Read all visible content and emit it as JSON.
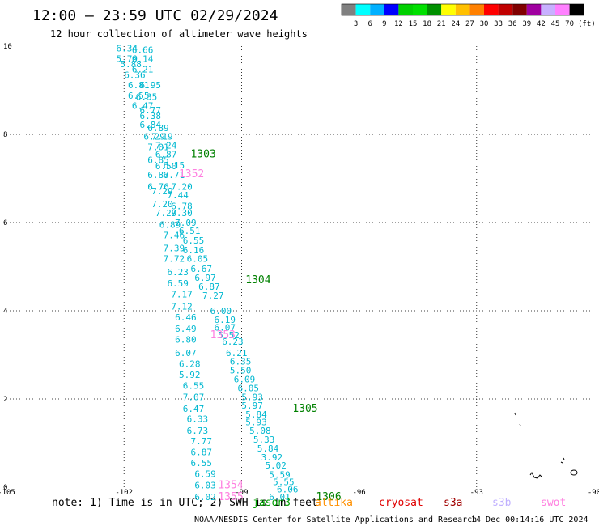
{
  "header": {
    "title": "12:00 — 23:59 UTC 02/29/2024",
    "subtitle": "12 hour collection of altimeter wave heights"
  },
  "scale": {
    "labels": [
      "3",
      "6",
      "9",
      "12",
      "15",
      "18",
      "21",
      "24",
      "27",
      "30",
      "33",
      "36",
      "39",
      "42",
      "45",
      "70"
    ],
    "unit": "(ft)",
    "colors": [
      "#808080",
      "#00ffff",
      "#00b0ff",
      "#0000ff",
      "#00d000",
      "#00e000",
      "#009000",
      "#ffff00",
      "#ffc000",
      "#ff8000",
      "#ff0000",
      "#c00000",
      "#800000",
      "#a000a0",
      "#c8b0ff",
      "#ff80ff",
      "#000000"
    ]
  },
  "footer": {
    "note": "note:  1) Time is in UTC; 2) SWH is in feet",
    "missions": [
      {
        "label": "jason3",
        "color": "#00a000"
      },
      {
        "label": "altika",
        "color": "#ff9000"
      },
      {
        "label": "cryosat",
        "color": "#e00000"
      },
      {
        "label": "s3a",
        "color": "#a00000"
      },
      {
        "label": "s3b",
        "color": "#c0b0ff"
      },
      {
        "label": "swot",
        "color": "#ff80e0"
      }
    ],
    "credit": "NOAA/NESDIS Center for Satellite Applications and Research",
    "timestamp": "14 Dec 00:14:16 UTC 2024"
  },
  "chart_data": {
    "type": "scatter",
    "x_ticks": [
      "-105",
      "-102",
      "-99",
      "-96",
      "-93",
      "-90"
    ],
    "y_ticks": [
      "0",
      "2",
      "4",
      "6",
      "8",
      "10"
    ],
    "xlim": [
      -105,
      -90
    ],
    "ylim": [
      0,
      10
    ],
    "grid": true,
    "points": [
      {
        "x": -102.2,
        "y": 9.95,
        "v": "6.34",
        "c": "#00b8d0"
      },
      {
        "x": -101.8,
        "y": 9.92,
        "v": "6.66",
        "c": "#00b8d0"
      },
      {
        "x": -102.2,
        "y": 9.72,
        "v": "5.79",
        "c": "#00b8d0"
      },
      {
        "x": -101.8,
        "y": 9.72,
        "v": "6.14",
        "c": "#00b8d0"
      },
      {
        "x": -102.1,
        "y": 9.6,
        "v": "5.88",
        "c": "#00b8d0"
      },
      {
        "x": -101.8,
        "y": 9.48,
        "v": "6.21",
        "c": "#00b8d0"
      },
      {
        "x": -102.0,
        "y": 9.35,
        "v": "6.36",
        "c": "#00b8d0"
      },
      {
        "x": -101.9,
        "y": 9.12,
        "v": "6.81",
        "c": "#00b8d0"
      },
      {
        "x": -101.6,
        "y": 9.12,
        "v": "6.95",
        "c": "#00b8d0"
      },
      {
        "x": -101.9,
        "y": 8.88,
        "v": "6.55",
        "c": "#00b8d0"
      },
      {
        "x": -101.7,
        "y": 8.85,
        "v": "6.35",
        "c": "#00b8d0"
      },
      {
        "x": -101.8,
        "y": 8.65,
        "v": "6.47",
        "c": "#00b8d0"
      },
      {
        "x": -101.6,
        "y": 8.55,
        "v": "6.77",
        "c": "#00b8d0"
      },
      {
        "x": -101.6,
        "y": 8.42,
        "v": "6.38",
        "c": "#00b8d0"
      },
      {
        "x": -101.6,
        "y": 8.22,
        "v": "6.84",
        "c": "#00b8d0"
      },
      {
        "x": -101.4,
        "y": 8.15,
        "v": "6.89",
        "c": "#00b8d0"
      },
      {
        "x": -101.5,
        "y": 7.95,
        "v": "6.29",
        "c": "#00b8d0"
      },
      {
        "x": -101.3,
        "y": 7.95,
        "v": "7.19",
        "c": "#00b8d0"
      },
      {
        "x": -101.4,
        "y": 7.72,
        "v": "7.01",
        "c": "#00b8d0"
      },
      {
        "x": -101.2,
        "y": 7.75,
        "v": "7.24",
        "c": "#00b8d0"
      },
      {
        "x": -101.2,
        "y": 7.55,
        "v": "6.87",
        "c": "#00b8d0"
      },
      {
        "x": -101.4,
        "y": 7.42,
        "v": "6.85",
        "c": "#00b8d0"
      },
      {
        "x": -101.0,
        "y": 7.3,
        "v": "6.15",
        "c": "#00b8d0"
      },
      {
        "x": -101.2,
        "y": 7.28,
        "v": "6.50",
        "c": "#00b8d0"
      },
      {
        "x": -101.4,
        "y": 7.08,
        "v": "6.87",
        "c": "#00b8d0"
      },
      {
        "x": -101.0,
        "y": 7.08,
        "v": "6.71",
        "c": "#00b8d0"
      },
      {
        "x": -101.4,
        "y": 6.82,
        "v": "6.76",
        "c": "#00b8d0"
      },
      {
        "x": -100.8,
        "y": 6.82,
        "v": "7.20",
        "c": "#00b8d0"
      },
      {
        "x": -101.3,
        "y": 6.72,
        "v": "7.29",
        "c": "#00b8d0"
      },
      {
        "x": -100.9,
        "y": 6.62,
        "v": "7.44",
        "c": "#00b8d0"
      },
      {
        "x": -101.3,
        "y": 6.42,
        "v": "7.20",
        "c": "#00b8d0"
      },
      {
        "x": -100.8,
        "y": 6.38,
        "v": "6.78",
        "c": "#00b8d0"
      },
      {
        "x": -101.2,
        "y": 6.22,
        "v": "7.29",
        "c": "#00b8d0"
      },
      {
        "x": -100.8,
        "y": 6.22,
        "v": "7.30",
        "c": "#00b8d0"
      },
      {
        "x": -101.1,
        "y": 5.95,
        "v": "6.89",
        "c": "#00b8d0"
      },
      {
        "x": -100.7,
        "y": 6.0,
        "v": "7.09",
        "c": "#00b8d0"
      },
      {
        "x": -100.6,
        "y": 5.82,
        "v": "6.51",
        "c": "#00b8d0"
      },
      {
        "x": -101.0,
        "y": 5.72,
        "v": "7.46",
        "c": "#00b8d0"
      },
      {
        "x": -100.5,
        "y": 5.6,
        "v": "6.55",
        "c": "#00b8d0"
      },
      {
        "x": -101.0,
        "y": 5.42,
        "v": "7.39",
        "c": "#00b8d0"
      },
      {
        "x": -100.5,
        "y": 5.38,
        "v": "6.16",
        "c": "#00b8d0"
      },
      {
        "x": -101.0,
        "y": 5.18,
        "v": "7.72",
        "c": "#00b8d0"
      },
      {
        "x": -100.4,
        "y": 5.18,
        "v": "6.05",
        "c": "#00b8d0"
      },
      {
        "x": -100.3,
        "y": 4.95,
        "v": "6.67",
        "c": "#00b8d0"
      },
      {
        "x": -100.9,
        "y": 4.88,
        "v": "6.23",
        "c": "#00b8d0"
      },
      {
        "x": -100.2,
        "y": 4.75,
        "v": "6.97",
        "c": "#00b8d0"
      },
      {
        "x": -100.9,
        "y": 4.62,
        "v": "6.59",
        "c": "#00b8d0"
      },
      {
        "x": -100.1,
        "y": 4.55,
        "v": "6.87",
        "c": "#00b8d0"
      },
      {
        "x": -100.8,
        "y": 4.38,
        "v": "7.17",
        "c": "#00b8d0"
      },
      {
        "x": -100.0,
        "y": 4.35,
        "v": "7.27",
        "c": "#00b8d0"
      },
      {
        "x": -100.8,
        "y": 4.1,
        "v": "7.12",
        "c": "#00b8d0"
      },
      {
        "x": -99.8,
        "y": 4.0,
        "v": "6.00",
        "c": "#00b8d0"
      },
      {
        "x": -100.7,
        "y": 3.85,
        "v": "6.46",
        "c": "#00b8d0"
      },
      {
        "x": -99.7,
        "y": 3.8,
        "v": "6.19",
        "c": "#00b8d0"
      },
      {
        "x": -100.7,
        "y": 3.6,
        "v": "6.49",
        "c": "#00b8d0"
      },
      {
        "x": -99.7,
        "y": 3.62,
        "v": "6.07",
        "c": "#00b8d0"
      },
      {
        "x": -99.6,
        "y": 3.45,
        "v": "5.52",
        "c": "#00b8d0"
      },
      {
        "x": -100.7,
        "y": 3.35,
        "v": "6.80",
        "c": "#00b8d0"
      },
      {
        "x": -99.5,
        "y": 3.3,
        "v": "6.23",
        "c": "#00b8d0"
      },
      {
        "x": -100.7,
        "y": 3.05,
        "v": "6.07",
        "c": "#00b8d0"
      },
      {
        "x": -99.4,
        "y": 3.05,
        "v": "6.21",
        "c": "#00b8d0"
      },
      {
        "x": -99.3,
        "y": 2.85,
        "v": "6.35",
        "c": "#00b8d0"
      },
      {
        "x": -100.6,
        "y": 2.8,
        "v": "6.28",
        "c": "#00b8d0"
      },
      {
        "x": -99.3,
        "y": 2.65,
        "v": "5.50",
        "c": "#00b8d0"
      },
      {
        "x": -100.6,
        "y": 2.55,
        "v": "5.92",
        "c": "#00b8d0"
      },
      {
        "x": -99.2,
        "y": 2.45,
        "v": "6.09",
        "c": "#00b8d0"
      },
      {
        "x": -100.5,
        "y": 2.3,
        "v": "6.55",
        "c": "#00b8d0"
      },
      {
        "x": -99.1,
        "y": 2.25,
        "v": "6.05",
        "c": "#00b8d0"
      },
      {
        "x": -100.5,
        "y": 2.05,
        "v": "7.07",
        "c": "#00b8d0"
      },
      {
        "x": -99.0,
        "y": 2.05,
        "v": "5.93",
        "c": "#00b8d0"
      },
      {
        "x": -99.0,
        "y": 1.85,
        "v": "5.97",
        "c": "#00b8d0"
      },
      {
        "x": -100.5,
        "y": 1.78,
        "v": "6.47",
        "c": "#00b8d0"
      },
      {
        "x": -98.9,
        "y": 1.65,
        "v": "5.84",
        "c": "#00b8d0"
      },
      {
        "x": -100.4,
        "y": 1.55,
        "v": "6.33",
        "c": "#00b8d0"
      },
      {
        "x": -98.9,
        "y": 1.48,
        "v": "5.93",
        "c": "#00b8d0"
      },
      {
        "x": -100.4,
        "y": 1.28,
        "v": "6.73",
        "c": "#00b8d0"
      },
      {
        "x": -98.8,
        "y": 1.28,
        "v": "5.08",
        "c": "#00b8d0"
      },
      {
        "x": -98.7,
        "y": 1.08,
        "v": "5.33",
        "c": "#00b8d0"
      },
      {
        "x": -100.3,
        "y": 1.05,
        "v": "7.77",
        "c": "#00b8d0"
      },
      {
        "x": -98.6,
        "y": 0.88,
        "v": "5.84",
        "c": "#00b8d0"
      },
      {
        "x": -100.3,
        "y": 0.8,
        "v": "6.87",
        "c": "#00b8d0"
      },
      {
        "x": -98.5,
        "y": 0.68,
        "v": "3.92",
        "c": "#00b8d0"
      },
      {
        "x": -100.3,
        "y": 0.55,
        "v": "6.55",
        "c": "#00b8d0"
      },
      {
        "x": -98.4,
        "y": 0.5,
        "v": "5.02",
        "c": "#00b8d0"
      },
      {
        "x": -100.2,
        "y": 0.3,
        "v": "6.59",
        "c": "#00b8d0"
      },
      {
        "x": -98.3,
        "y": 0.28,
        "v": "5.59",
        "c": "#00b8d0"
      },
      {
        "x": -98.2,
        "y": 0.12,
        "v": "5.55",
        "c": "#00b8d0"
      },
      {
        "x": -100.2,
        "y": 0.05,
        "v": "6.03",
        "c": "#00b8d0"
      },
      {
        "x": -98.1,
        "y": -0.05,
        "v": "6.06",
        "c": "#00b8d0"
      },
      {
        "x": -100.2,
        "y": -0.22,
        "v": "6.02",
        "c": "#00b8d0"
      },
      {
        "x": -98.3,
        "y": -0.22,
        "v": "6.01",
        "c": "#00b8d0"
      }
    ],
    "pass_labels": [
      {
        "x": -100.3,
        "y": 7.55,
        "label": "1303",
        "c": "#008000"
      },
      {
        "x": -100.6,
        "y": 7.1,
        "label": "1352",
        "c": "#ff80e0"
      },
      {
        "x": -98.9,
        "y": 4.7,
        "label": "1304",
        "c": "#008000"
      },
      {
        "x": -99.8,
        "y": 3.45,
        "label": "1353",
        "c": "#ff80e0"
      },
      {
        "x": -97.7,
        "y": 1.78,
        "label": "1305",
        "c": "#008000"
      },
      {
        "x": -99.6,
        "y": 0.05,
        "label": "1354",
        "c": "#ff80e0"
      },
      {
        "x": -99.6,
        "y": -0.22,
        "label": "1355",
        "c": "#ff80e0"
      },
      {
        "x": -97.1,
        "y": -0.22,
        "label": "1306",
        "c": "#008000"
      }
    ]
  }
}
